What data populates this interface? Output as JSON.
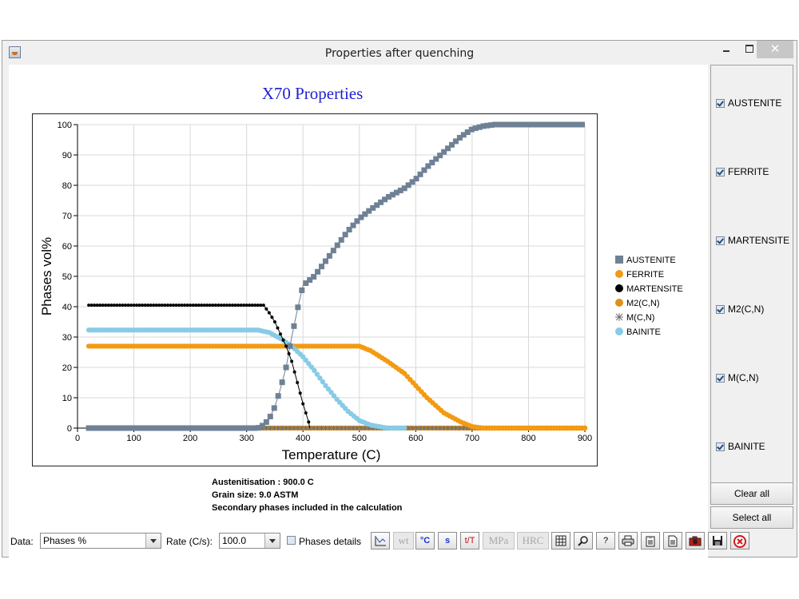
{
  "window": {
    "title": "Properties after quenching",
    "close_glyph": "✕"
  },
  "chart_data": {
    "type": "scatter",
    "title": "X70 Properties",
    "xlabel": "Temperature (C)",
    "ylabel": "Phases vol%",
    "xlim": [
      0,
      900
    ],
    "ylim": [
      0,
      100
    ],
    "x_ticks": [
      "0",
      "100",
      "200",
      "300",
      "400",
      "500",
      "600",
      "700",
      "800",
      "900"
    ],
    "y_ticks": [
      "0",
      "10",
      "20",
      "30",
      "40",
      "50",
      "60",
      "70",
      "80",
      "90",
      "100"
    ],
    "grid": true,
    "legend_placement": "right",
    "series": [
      {
        "name": "AUSTENITE",
        "marker": "square",
        "color": "#6f8194",
        "points": [
          [
            20,
            0
          ],
          [
            320,
            0
          ],
          [
            330,
            1
          ],
          [
            340,
            3
          ],
          [
            350,
            7
          ],
          [
            360,
            13
          ],
          [
            370,
            20
          ],
          [
            380,
            30
          ],
          [
            390,
            39
          ],
          [
            400,
            47
          ],
          [
            420,
            50
          ],
          [
            440,
            55
          ],
          [
            460,
            60
          ],
          [
            480,
            65
          ],
          [
            500,
            69
          ],
          [
            520,
            72
          ],
          [
            550,
            76
          ],
          [
            580,
            79
          ],
          [
            600,
            82
          ],
          [
            620,
            86
          ],
          [
            650,
            91
          ],
          [
            680,
            96
          ],
          [
            700,
            98.5
          ],
          [
            720,
            99.5
          ],
          [
            740,
            100
          ],
          [
            900,
            100
          ]
        ]
      },
      {
        "name": "FERRITE",
        "marker": "circle",
        "color": "#f39a10",
        "points": [
          [
            20,
            27
          ],
          [
            500,
            27
          ],
          [
            520,
            25.5
          ],
          [
            550,
            22
          ],
          [
            580,
            18
          ],
          [
            600,
            14
          ],
          [
            620,
            10
          ],
          [
            650,
            5
          ],
          [
            680,
            2
          ],
          [
            700,
            0.5
          ],
          [
            720,
            0
          ],
          [
            900,
            0
          ]
        ]
      },
      {
        "name": "MARTENSITE",
        "marker": "circle",
        "color": "#000000",
        "points": [
          [
            20,
            40.5
          ],
          [
            330,
            40.5
          ],
          [
            340,
            38
          ],
          [
            350,
            35
          ],
          [
            360,
            31
          ],
          [
            370,
            27
          ],
          [
            380,
            22
          ],
          [
            390,
            15
          ],
          [
            400,
            8
          ],
          [
            410,
            2
          ],
          [
            412,
            0
          ]
        ]
      },
      {
        "name": "M2(C,N)",
        "marker": "circle",
        "color": "#e08f1a",
        "points": [
          [
            20,
            0
          ],
          [
            900,
            0
          ]
        ]
      },
      {
        "name": "M(C,N)",
        "marker": "asterisk",
        "color": "#707070",
        "points": [
          [
            20,
            0
          ],
          [
            900,
            0
          ]
        ]
      },
      {
        "name": "BAINITE",
        "marker": "circle",
        "color": "#87cbe6",
        "points": [
          [
            20,
            32.3
          ],
          [
            320,
            32.3
          ],
          [
            340,
            31.5
          ],
          [
            360,
            29.5
          ],
          [
            380,
            27
          ],
          [
            400,
            23.5
          ],
          [
            420,
            19
          ],
          [
            440,
            14
          ],
          [
            460,
            9.5
          ],
          [
            480,
            5.5
          ],
          [
            500,
            2.5
          ],
          [
            520,
            1
          ],
          [
            550,
            0
          ],
          [
            580,
            0
          ]
        ]
      }
    ]
  },
  "info": {
    "line1": "Austenitisation : 900.0 C",
    "line2": "Grain size: 9.0 ASTM",
    "line3": "Secondary phases included in the calculation"
  },
  "sidebar": {
    "items": [
      {
        "label": "AUSTENITE",
        "checked": true
      },
      {
        "label": "FERRITE",
        "checked": true
      },
      {
        "label": "MARTENSITE",
        "checked": true
      },
      {
        "label": "M2(C,N)",
        "checked": true
      },
      {
        "label": "M(C,N)",
        "checked": true
      },
      {
        "label": "BAINITE",
        "checked": true
      }
    ],
    "clear_all": "Clear all",
    "select_all": "Select all"
  },
  "toolbar": {
    "data_label": "Data:",
    "data_value": "Phases %",
    "rate_label": "Rate (C/s):",
    "rate_value": "100.0",
    "phases_details": "Phases details",
    "tools": [
      {
        "icon": "chart-type-icon",
        "text": "",
        "disabled": false
      },
      {
        "icon": "weight-units-icon",
        "text": "wt",
        "disabled": true
      },
      {
        "icon": "celsius-icon",
        "text": "°C",
        "disabled": false
      },
      {
        "icon": "seconds-icon",
        "text": "s",
        "disabled": false
      },
      {
        "icon": "time-temperature-icon",
        "text": "t/T",
        "disabled": false
      },
      {
        "icon": "mpa-icon",
        "text": "MPa",
        "disabled": true
      },
      {
        "icon": "hrc-icon",
        "text": "HRC",
        "disabled": true
      },
      {
        "icon": "grid-icon",
        "text": "",
        "disabled": false
      },
      {
        "icon": "zoom-icon",
        "text": "",
        "disabled": false
      },
      {
        "icon": "help-icon",
        "text": "?",
        "disabled": false
      },
      {
        "icon": "print-icon",
        "text": "",
        "disabled": false
      },
      {
        "icon": "clipboard-icon",
        "text": "",
        "disabled": false
      },
      {
        "icon": "document-icon",
        "text": "",
        "disabled": false
      },
      {
        "icon": "camera-icon",
        "text": "",
        "disabled": false
      },
      {
        "icon": "save-icon",
        "text": "",
        "disabled": false
      },
      {
        "icon": "close-circle-icon",
        "text": "",
        "disabled": false
      }
    ]
  }
}
